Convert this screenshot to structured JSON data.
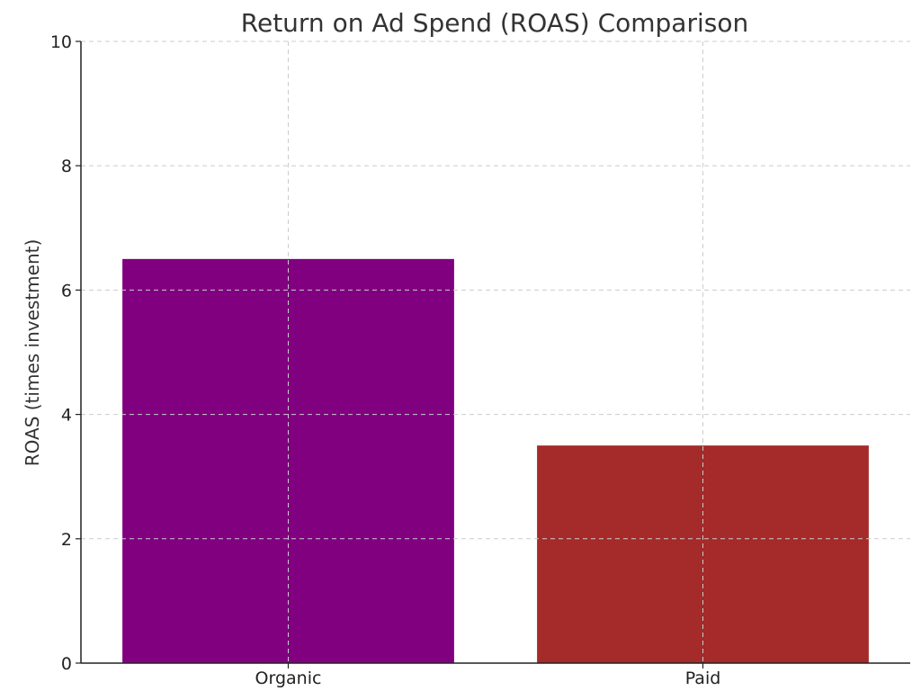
{
  "chart_data": {
    "type": "bar",
    "title": "Return on Ad Spend (ROAS) Comparison",
    "xlabel": "",
    "ylabel": "ROAS (times investment)",
    "categories": [
      "Organic",
      "Paid"
    ],
    "values": [
      6.5,
      3.5
    ],
    "colors": [
      "#800080",
      "#A52A2A"
    ],
    "ylim": [
      0,
      10
    ],
    "yticks": [
      0,
      2,
      4,
      6,
      8,
      10
    ],
    "grid": true
  }
}
